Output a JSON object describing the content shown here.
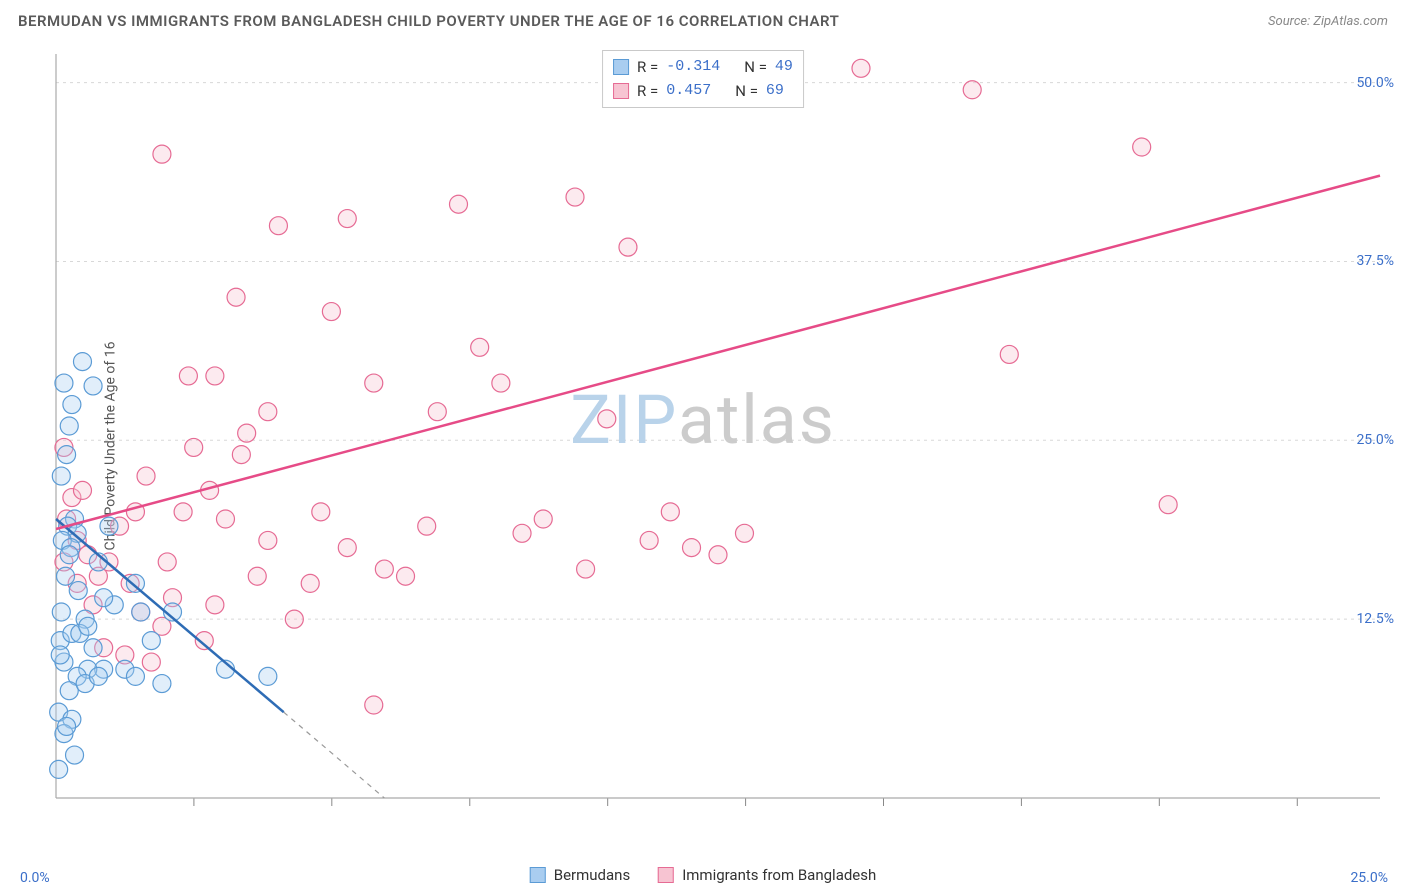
{
  "title": "BERMUDAN VS IMMIGRANTS FROM BANGLADESH CHILD POVERTY UNDER THE AGE OF 16 CORRELATION CHART",
  "source": "Source: ZipAtlas.com",
  "y_axis_label": "Child Poverty Under the Age of 16",
  "watermark": {
    "part1": "ZIP",
    "part2": "atlas"
  },
  "colors": {
    "series_a_fill": "#a9cdf0",
    "series_a_stroke": "#5b9bd5",
    "series_a_line": "#2e6cb5",
    "series_b_fill": "#f7c4d2",
    "series_b_stroke": "#e66b94",
    "series_b_line": "#e64b87",
    "grid": "#d8d8d8",
    "axis": "#aaaaaa",
    "tick_major": "#888888",
    "y_label_text": "#3b6fc9",
    "x_label_text": "#3b6fc9",
    "title_text": "#5a5a5a",
    "source_text": "#888888",
    "stat_value": "#3b6fc9",
    "dash_line": "#999999"
  },
  "legend_top": {
    "rows": [
      {
        "swatch": "a",
        "r_label": "R =",
        "r_value": "-0.314",
        "n_label": "N =",
        "n_value": "49"
      },
      {
        "swatch": "b",
        "r_label": "R =",
        "r_value": " 0.457",
        "n_label": "N =",
        "n_value": "69"
      }
    ]
  },
  "legend_bottom": {
    "items": [
      {
        "swatch": "a",
        "label": "Bermudans"
      },
      {
        "swatch": "b",
        "label": "Immigrants from Bangladesh"
      }
    ]
  },
  "axes": {
    "xlim": [
      0,
      25
    ],
    "ylim": [
      0,
      52
    ],
    "x_origin_label": "0.0%",
    "x_max_label": "25.0%",
    "y_ticks": [
      {
        "value": 12.5,
        "label": "12.5%"
      },
      {
        "value": 25.0,
        "label": "25.0%"
      },
      {
        "value": 37.5,
        "label": "37.5%"
      },
      {
        "value": 50.0,
        "label": "50.0%"
      }
    ],
    "x_ticks_minor": [
      2.604,
      5.208,
      7.813,
      10.417,
      13.021,
      15.625,
      18.229,
      20.833,
      23.438
    ]
  },
  "marker": {
    "radius": 9,
    "fill_opacity": 0.35,
    "stroke_width": 1.2
  },
  "trend_lines": {
    "a": {
      "x1": 0,
      "y1": 19.5,
      "x2": 4.3,
      "y2": 6.0,
      "dash_ext_x": 6.2,
      "dash_ext_y": 0
    },
    "b": {
      "x1": 0,
      "y1": 18.8,
      "x2": 25,
      "y2": 43.5
    }
  },
  "series_a_points": [
    [
      0.15,
      29.0
    ],
    [
      0.1,
      22.5
    ],
    [
      0.3,
      27.5
    ],
    [
      0.25,
      26.0
    ],
    [
      0.2,
      24.0
    ],
    [
      0.35,
      19.5
    ],
    [
      0.22,
      19.0
    ],
    [
      0.4,
      18.5
    ],
    [
      0.12,
      18.0
    ],
    [
      0.28,
      17.5
    ],
    [
      0.18,
      15.5
    ],
    [
      0.42,
      14.5
    ],
    [
      0.1,
      13.0
    ],
    [
      0.55,
      12.5
    ],
    [
      0.08,
      11.0
    ],
    [
      0.5,
      30.5
    ],
    [
      0.3,
      11.5
    ],
    [
      0.7,
      10.5
    ],
    [
      0.15,
      9.5
    ],
    [
      0.9,
      9.0
    ],
    [
      0.6,
      9.0
    ],
    [
      0.4,
      8.5
    ],
    [
      0.25,
      7.5
    ],
    [
      1.1,
      13.5
    ],
    [
      1.0,
      19.0
    ],
    [
      1.5,
      15.0
    ],
    [
      1.3,
      9.0
    ],
    [
      1.8,
      11.0
    ],
    [
      2.0,
      8.0
    ],
    [
      2.2,
      13.0
    ],
    [
      0.05,
      6.0
    ],
    [
      0.3,
      5.5
    ],
    [
      0.15,
      4.5
    ],
    [
      0.2,
      5.0
    ],
    [
      0.35,
      3.0
    ],
    [
      0.55,
      8.0
    ],
    [
      0.8,
      8.5
    ],
    [
      1.5,
      8.5
    ],
    [
      3.2,
      9.0
    ],
    [
      4.0,
      8.5
    ],
    [
      0.08,
      10.0
    ],
    [
      0.45,
      11.5
    ],
    [
      0.6,
      12.0
    ],
    [
      0.9,
      14.0
    ],
    [
      1.6,
      13.0
    ],
    [
      0.05,
      2.0
    ],
    [
      0.8,
      16.5
    ],
    [
      0.25,
      17.0
    ],
    [
      0.7,
      28.8
    ]
  ],
  "series_b_points": [
    [
      0.15,
      16.5
    ],
    [
      0.4,
      18.0
    ],
    [
      0.6,
      17.0
    ],
    [
      0.8,
      15.5
    ],
    [
      1.0,
      16.5
    ],
    [
      1.2,
      19.0
    ],
    [
      1.4,
      15.0
    ],
    [
      1.6,
      13.0
    ],
    [
      1.3,
      10.0
    ],
    [
      1.8,
      9.5
    ],
    [
      2.0,
      12.0
    ],
    [
      2.2,
      14.0
    ],
    [
      2.4,
      20.0
    ],
    [
      2.6,
      24.5
    ],
    [
      2.8,
      11.0
    ],
    [
      3.0,
      29.5
    ],
    [
      3.2,
      19.5
    ],
    [
      3.4,
      35.0
    ],
    [
      3.6,
      25.5
    ],
    [
      3.8,
      15.5
    ],
    [
      4.0,
      27.0
    ],
    [
      4.2,
      40.0
    ],
    [
      4.5,
      12.5
    ],
    [
      5.0,
      20.0
    ],
    [
      5.2,
      34.0
    ],
    [
      5.5,
      17.5
    ],
    [
      6.0,
      6.5
    ],
    [
      6.2,
      16.0
    ],
    [
      6.6,
      15.5
    ],
    [
      7.0,
      19.0
    ],
    [
      7.2,
      27.0
    ],
    [
      7.6,
      41.5
    ],
    [
      8.0,
      31.5
    ],
    [
      8.4,
      29.0
    ],
    [
      8.8,
      18.5
    ],
    [
      9.2,
      19.5
    ],
    [
      9.8,
      42.0
    ],
    [
      10.0,
      16.0
    ],
    [
      10.4,
      26.5
    ],
    [
      10.8,
      38.5
    ],
    [
      11.2,
      18.0
    ],
    [
      11.6,
      20.0
    ],
    [
      12.0,
      17.5
    ],
    [
      12.5,
      17.0
    ],
    [
      13.0,
      18.5
    ],
    [
      2.0,
      45.0
    ],
    [
      0.3,
      21.0
    ],
    [
      0.5,
      21.5
    ],
    [
      0.2,
      19.5
    ],
    [
      15.2,
      51.0
    ],
    [
      17.3,
      49.5
    ],
    [
      18.0,
      31.0
    ],
    [
      20.5,
      45.5
    ],
    [
      21.0,
      20.5
    ],
    [
      2.1,
      16.5
    ],
    [
      3.0,
      13.5
    ],
    [
      0.9,
      10.5
    ],
    [
      1.5,
      20.0
    ],
    [
      4.8,
      15.0
    ],
    [
      5.5,
      40.5
    ],
    [
      6.0,
      29.0
    ],
    [
      2.9,
      21.5
    ],
    [
      3.5,
      24.0
    ],
    [
      0.15,
      24.5
    ],
    [
      0.7,
      13.5
    ],
    [
      1.7,
      22.5
    ],
    [
      4.0,
      18.0
    ],
    [
      2.5,
      29.5
    ],
    [
      0.4,
      15.0
    ]
  ]
}
